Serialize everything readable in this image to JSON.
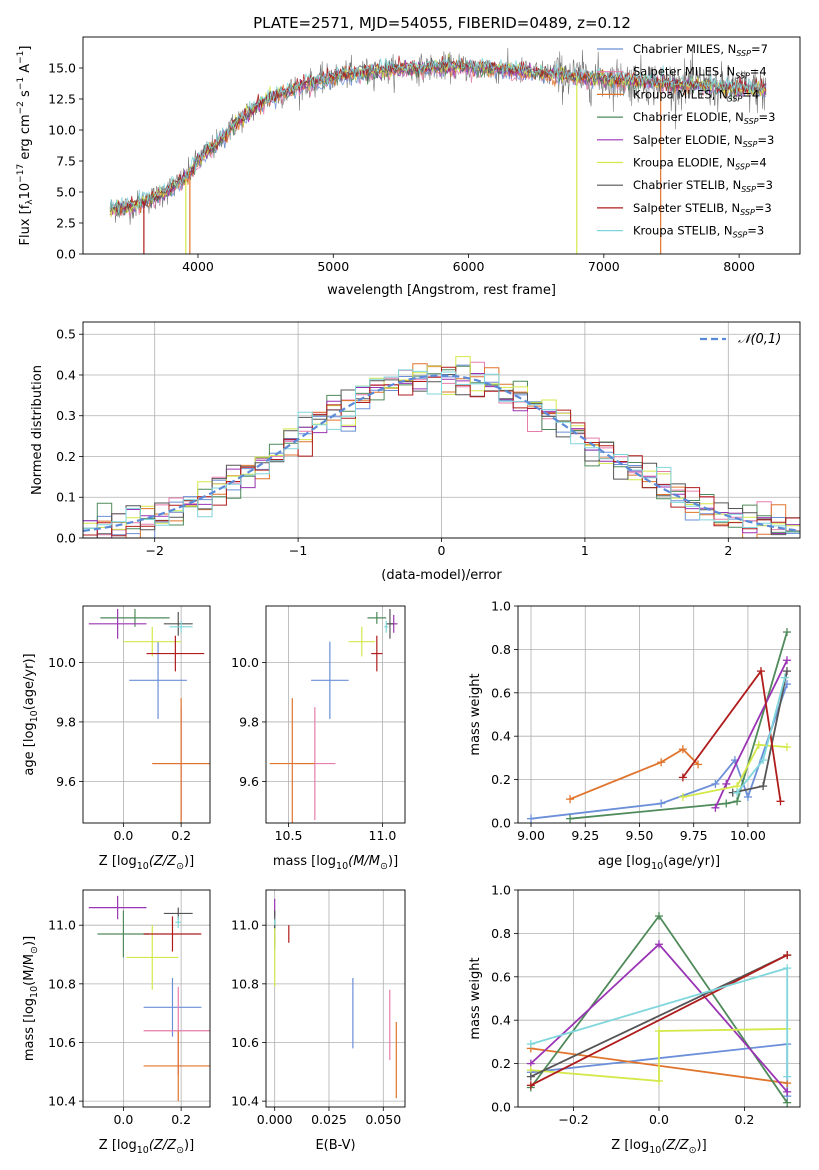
{
  "figure": {
    "title": "PLATE=2571, MJD=54055, FIBERID=0489, z=0.12"
  },
  "colors": {
    "chabrier_miles": "#6b8fd8",
    "salpeter_miles": "#e67dab",
    "kroupa_miles": "#e0742c",
    "chabrier_elodie": "#4f8a5a",
    "salpeter_elodie": "#9a34b4",
    "kroupa_elodie": "#d4e84a",
    "chabrier_stelib": "#555555",
    "salpeter_stelib": "#b01c1c",
    "kroupa_stelib": "#7fd6dc",
    "gaussian": "#5b8bd8",
    "spectrum": "#777777"
  },
  "chart_data": [
    {
      "id": "spectrum",
      "type": "line",
      "title": "PLATE=2571, MJD=54055, FIBERID=0489, z=0.12",
      "xlabel": "wavelength [Angstrom, rest frame]",
      "ylabel_main": "Flux [f",
      "ylabel_sub": "λ",
      "ylabel_mid": "10",
      "ylabel_sup": "−17",
      "ylabel_tail": " erg cm",
      "ylabel_sup2": "−2",
      "ylabel_tail2": " s",
      "ylabel_sup3": "−1",
      "ylabel_tail3": " A",
      "ylabel_sup4": "−1",
      "ylabel_end": "]",
      "xlim": [
        3150,
        8450
      ],
      "ylim": [
        0,
        17.5
      ],
      "xticks": [
        4000,
        5000,
        6000,
        7000,
        8000
      ],
      "yticks": [
        0.0,
        2.5,
        5.0,
        7.5,
        10.0,
        12.5,
        15.0
      ],
      "ytick_labels": [
        "0.0",
        "2.5",
        "5.0",
        "7.5",
        "10.0",
        "12.5",
        "15.0"
      ],
      "grid": false,
      "legend_position": "top-right",
      "continuum": {
        "x": [
          3350,
          3500,
          3700,
          3900,
          4000,
          4150,
          4300,
          4500,
          4700,
          4900,
          5100,
          5300,
          5500,
          5700,
          5900,
          6100,
          6300,
          6500,
          6700,
          6900,
          7100,
          7300,
          7500,
          7700,
          7900,
          8200
        ],
        "y": [
          3.6,
          3.8,
          4.6,
          6.0,
          7.5,
          9.0,
          10.8,
          12.4,
          13.3,
          14.0,
          14.5,
          14.7,
          14.9,
          15.0,
          15.1,
          15.0,
          14.8,
          14.6,
          14.4,
          14.2,
          14.0,
          13.9,
          13.7,
          13.6,
          13.4,
          13.2
        ]
      },
      "legend": [
        {
          "key": "chabrier_miles",
          "main": "Chabrier MILES, N",
          "sub": "SSP",
          "tail": "=7"
        },
        {
          "key": "salpeter_miles",
          "main": "Salpeter MILES, N",
          "sub": "SSP",
          "tail": "=4"
        },
        {
          "key": "kroupa_miles",
          "main": "Kroupa MILES, N",
          "sub": "SSP",
          "tail": "=4"
        },
        {
          "key": "chabrier_elodie",
          "main": "Chabrier ELODIE, N",
          "sub": "SSP",
          "tail": "=3"
        },
        {
          "key": "salpeter_elodie",
          "main": "Salpeter ELODIE, N",
          "sub": "SSP",
          "tail": "=3"
        },
        {
          "key": "kroupa_elodie",
          "main": "Kroupa ELODIE, N",
          "sub": "SSP",
          "tail": "=4"
        },
        {
          "key": "chabrier_stelib",
          "main": "Chabrier STELIB, N",
          "sub": "SSP",
          "tail": "=3"
        },
        {
          "key": "salpeter_stelib",
          "main": "Salpeter STELIB, N",
          "sub": "SSP",
          "tail": "=3"
        },
        {
          "key": "kroupa_stelib",
          "main": "Kroupa STELIB, N",
          "sub": "SSP",
          "tail": "=3"
        }
      ],
      "drops": [
        {
          "x": 3600,
          "key": "salpeter_stelib"
        },
        {
          "x": 3910,
          "key": "kroupa_elodie"
        },
        {
          "x": 3940,
          "key": "kroupa_miles"
        },
        {
          "x": 6800,
          "key": "kroupa_elodie"
        },
        {
          "x": 7420,
          "key": "kroupa_miles"
        }
      ]
    },
    {
      "id": "residuals",
      "type": "histogram",
      "xlabel": "(data-model)/error",
      "ylabel": "Normed distribution",
      "xlim": [
        -2.5,
        2.5
      ],
      "ylim": [
        0,
        0.53
      ],
      "xticks": [
        -2,
        -1,
        0,
        1,
        2
      ],
      "xtick_labels": [
        "−2",
        "−1",
        "0",
        "1",
        "2"
      ],
      "yticks": [
        0.0,
        0.1,
        0.2,
        0.3,
        0.4,
        0.5
      ],
      "ytick_labels": [
        "0.0",
        "0.1",
        "0.2",
        "0.3",
        "0.4",
        "0.5"
      ],
      "grid": true,
      "bin_width": 0.1,
      "legend": [
        {
          "label": "𝒩(0,1)",
          "style": "dashed"
        }
      ],
      "legend_position": "top-right"
    },
    {
      "id": "age_vs_Z",
      "type": "errorbar",
      "xlabel_main": "Z [log",
      "xlabel_sub": "10",
      "xlabel_tail": "(Z/Z",
      "xlabel_sub2": "⊙",
      "xlabel_end": ")]",
      "ylabel_main": "age  [log",
      "ylabel_sub": "10",
      "ylabel_end": "(age/yr)]",
      "xlim": [
        -0.14,
        0.3
      ],
      "ylim": [
        9.46,
        10.19
      ],
      "xticks": [
        0.0,
        0.2
      ],
      "xtick_labels": [
        "0.0",
        "0.2"
      ],
      "yticks": [
        9.6,
        9.8,
        10.0
      ],
      "ytick_labels": [
        "9.6",
        "9.8",
        "10.0"
      ],
      "grid": true,
      "points": [
        {
          "key": "chabrier_miles",
          "x": 0.12,
          "y": 9.94,
          "xerr": 0.1,
          "yerr": 0.13
        },
        {
          "key": "salpeter_miles",
          "x": 0.2,
          "y": 9.66,
          "xerr": 0.1,
          "yerr": 0.19
        },
        {
          "key": "kroupa_miles",
          "x": 0.2,
          "y": 9.66,
          "xerr": 0.1,
          "yerr": 0.22
        },
        {
          "key": "chabrier_elodie",
          "x": 0.04,
          "y": 10.15,
          "xerr": 0.12,
          "yerr": 0.03
        },
        {
          "key": "salpeter_elodie",
          "x": -0.02,
          "y": 10.13,
          "xerr": 0.1,
          "yerr": 0.05
        },
        {
          "key": "kroupa_elodie",
          "x": 0.1,
          "y": 10.07,
          "xerr": 0.1,
          "yerr": 0.05
        },
        {
          "key": "chabrier_stelib",
          "x": 0.19,
          "y": 10.13,
          "xerr": 0.05,
          "yerr": 0.04
        },
        {
          "key": "salpeter_stelib",
          "x": 0.18,
          "y": 10.03,
          "xerr": 0.1,
          "yerr": 0.06
        },
        {
          "key": "kroupa_stelib",
          "x": 0.2,
          "y": 10.12,
          "xerr": 0.04,
          "yerr": 0.02
        }
      ]
    },
    {
      "id": "age_vs_mass",
      "type": "errorbar",
      "xlabel_main": "mass [log",
      "xlabel_sub": "10",
      "xlabel_tail": "(M/M",
      "xlabel_sub2": "⊙",
      "xlabel_end": ")]",
      "xlim": [
        10.38,
        11.12
      ],
      "ylim": [
        9.46,
        10.19
      ],
      "xticks": [
        10.5,
        11.0
      ],
      "xtick_labels": [
        "10.5",
        "11.0"
      ],
      "yticks": [
        9.6,
        9.8,
        10.0
      ],
      "ytick_labels": [
        "9.6",
        "9.8",
        "10.0"
      ],
      "grid": true,
      "points": [
        {
          "key": "chabrier_miles",
          "x": 10.72,
          "y": 9.94,
          "xerr": 0.1,
          "yerr": 0.13
        },
        {
          "key": "salpeter_miles",
          "x": 10.64,
          "y": 9.66,
          "xerr": 0.11,
          "yerr": 0.19
        },
        {
          "key": "kroupa_miles",
          "x": 10.52,
          "y": 9.66,
          "xerr": 0.12,
          "yerr": 0.22
        },
        {
          "key": "chabrier_elodie",
          "x": 10.97,
          "y": 10.15,
          "xerr": 0.05,
          "yerr": 0.02
        },
        {
          "key": "salpeter_elodie",
          "x": 11.06,
          "y": 10.13,
          "xerr": 0.02,
          "yerr": 0.03
        },
        {
          "key": "kroupa_elodie",
          "x": 10.89,
          "y": 10.07,
          "xerr": 0.07,
          "yerr": 0.05
        },
        {
          "key": "chabrier_stelib",
          "x": 11.04,
          "y": 10.13,
          "xerr": 0.02,
          "yerr": 0.05
        },
        {
          "key": "salpeter_stelib",
          "x": 10.97,
          "y": 10.03,
          "xerr": 0.03,
          "yerr": 0.06
        },
        {
          "key": "kroupa_stelib",
          "x": 11.02,
          "y": 10.12,
          "xerr": 0.01,
          "yerr": 0.02
        }
      ]
    },
    {
      "id": "weight_vs_age",
      "type": "line",
      "xlabel_main": "age  [log",
      "xlabel_sub": "10",
      "xlabel_end": "(age/yr)]",
      "ylabel": "mass weight",
      "xlim": [
        8.94,
        10.24
      ],
      "ylim": [
        0,
        1.0
      ],
      "xticks": [
        9.0,
        9.25,
        9.5,
        9.75,
        10.0
      ],
      "xtick_labels": [
        "9.00",
        "9.25",
        "9.50",
        "9.75",
        "10.00"
      ],
      "yticks": [
        0.0,
        0.2,
        0.4,
        0.6,
        0.8,
        1.0
      ],
      "ytick_labels": [
        "0.0",
        "0.2",
        "0.4",
        "0.6",
        "0.8",
        "1.0"
      ],
      "grid": true,
      "series": [
        {
          "key": "chabrier_miles",
          "x": [
            9.0,
            9.6,
            9.85,
            9.94,
            10.0,
            10.18
          ],
          "y": [
            0.02,
            0.09,
            0.18,
            0.29,
            0.12,
            0.64
          ]
        },
        {
          "key": "kroupa_miles",
          "x": [
            9.18,
            9.6,
            9.7,
            9.77
          ],
          "y": [
            0.11,
            0.28,
            0.34,
            0.27
          ]
        },
        {
          "key": "chabrier_elodie",
          "x": [
            9.18,
            9.9,
            9.95,
            10.18
          ],
          "y": [
            0.02,
            0.09,
            0.1,
            0.88
          ]
        },
        {
          "key": "salpeter_elodie",
          "x": [
            9.85,
            9.9,
            10.18
          ],
          "y": [
            0.07,
            0.18,
            0.75
          ]
        },
        {
          "key": "kroupa_elodie",
          "x": [
            9.7,
            9.95,
            10.05,
            10.18
          ],
          "y": [
            0.12,
            0.17,
            0.36,
            0.35
          ]
        },
        {
          "key": "chabrier_stelib",
          "x": [
            9.93,
            10.07,
            10.18
          ],
          "y": [
            0.14,
            0.17,
            0.7
          ]
        },
        {
          "key": "salpeter_stelib",
          "x": [
            9.7,
            10.06,
            10.15
          ],
          "y": [
            0.21,
            0.7,
            0.1
          ]
        },
        {
          "key": "kroupa_stelib",
          "x": [
            9.95,
            10.07,
            10.17
          ],
          "y": [
            0.14,
            0.29,
            0.67
          ]
        }
      ]
    },
    {
      "id": "mass_vs_Z",
      "type": "errorbar",
      "xlabel_main": "Z [log",
      "xlabel_sub": "10",
      "xlabel_tail": "(Z/Z",
      "xlabel_sub2": "⊙",
      "xlabel_end": ")]",
      "ylabel_main": "mass [log",
      "ylabel_sub": "10",
      "ylabel_tail": "(M/M",
      "ylabel_sub2": "⊙",
      "ylabel_end": ")]",
      "xlim": [
        -0.14,
        0.3
      ],
      "ylim": [
        10.38,
        11.12
      ],
      "xticks": [
        0.0,
        0.2
      ],
      "xtick_labels": [
        "0.0",
        "0.2"
      ],
      "yticks": [
        10.4,
        10.6,
        10.8,
        11.0
      ],
      "ytick_labels": [
        "10.4",
        "10.6",
        "10.8",
        "11.0"
      ],
      "grid": true,
      "points": [
        {
          "key": "chabrier_miles",
          "x": 0.17,
          "y": 10.72,
          "xerr": 0.1,
          "yerr": 0.1
        },
        {
          "key": "salpeter_miles",
          "x": 0.19,
          "y": 10.64,
          "xerr": 0.12,
          "yerr": 0.15
        },
        {
          "key": "kroupa_miles",
          "x": 0.19,
          "y": 10.52,
          "xerr": 0.12,
          "yerr": 0.12
        },
        {
          "key": "chabrier_elodie",
          "x": 0.0,
          "y": 10.97,
          "xerr": 0.09,
          "yerr": 0.08
        },
        {
          "key": "salpeter_elodie",
          "x": -0.02,
          "y": 11.06,
          "xerr": 0.1,
          "yerr": 0.04
        },
        {
          "key": "kroupa_elodie",
          "x": 0.1,
          "y": 10.89,
          "xerr": 0.09,
          "yerr": 0.11
        },
        {
          "key": "chabrier_stelib",
          "x": 0.19,
          "y": 11.04,
          "xerr": 0.05,
          "yerr": 0.02
        },
        {
          "key": "salpeter_stelib",
          "x": 0.17,
          "y": 10.97,
          "xerr": 0.1,
          "yerr": 0.06
        },
        {
          "key": "kroupa_stelib",
          "x": 0.19,
          "y": 11.01,
          "xerr": 0.01,
          "yerr": 0.02
        }
      ]
    },
    {
      "id": "mass_vs_ebv",
      "type": "errorbar",
      "xlabel": "E(B-V)",
      "xlim": [
        -0.004,
        0.06
      ],
      "ylim": [
        10.38,
        11.12
      ],
      "xticks": [
        0.0,
        0.025,
        0.05
      ],
      "xtick_labels": [
        "0.000",
        "0.025",
        "0.050"
      ],
      "yticks": [
        10.4,
        10.6,
        10.8,
        11.0
      ],
      "ytick_labels": [
        "10.4",
        "10.6",
        "10.8",
        "11.0"
      ],
      "grid": true,
      "points": [
        {
          "key": "chabrier_miles",
          "x": 0.036,
          "y": 10.7,
          "xerr": 0,
          "yerr": 0.12
        },
        {
          "key": "salpeter_miles",
          "x": 0.053,
          "y": 10.66,
          "xerr": 0,
          "yerr": 0.12
        },
        {
          "key": "kroupa_miles",
          "x": 0.056,
          "y": 10.54,
          "xerr": 0,
          "yerr": 0.13
        },
        {
          "key": "chabrier_elodie",
          "x": 0.0,
          "y": 10.97,
          "xerr": 0,
          "yerr": 0.05
        },
        {
          "key": "salpeter_elodie",
          "x": 0.0,
          "y": 11.06,
          "xerr": 0,
          "yerr": 0.03
        },
        {
          "key": "kroupa_elodie",
          "x": 0.0,
          "y": 10.89,
          "xerr": 0,
          "yerr": 0.1
        },
        {
          "key": "chabrier_stelib",
          "x": 0.0,
          "y": 11.02,
          "xerr": 0,
          "yerr": 0.03
        },
        {
          "key": "salpeter_stelib",
          "x": 0.0065,
          "y": 10.97,
          "xerr": 0,
          "yerr": 0.03
        },
        {
          "key": "kroupa_stelib",
          "x": 0.0,
          "y": 11.01,
          "xerr": 0,
          "yerr": 0.01
        }
      ]
    },
    {
      "id": "weight_vs_Z",
      "type": "line",
      "xlabel_main": "Z [log",
      "xlabel_sub": "10",
      "xlabel_tail": "(Z/Z",
      "xlabel_sub2": "⊙",
      "xlabel_end": ")]",
      "ylabel": "mass weight",
      "xlim": [
        -0.33,
        0.33
      ],
      "ylim": [
        0,
        1.0
      ],
      "xticks": [
        -0.2,
        0.0,
        0.2
      ],
      "xtick_labels": [
        "−0.2",
        "0.0",
        "0.2"
      ],
      "yticks": [
        0.0,
        0.2,
        0.4,
        0.6,
        0.8,
        1.0
      ],
      "ytick_labels": [
        "0.0",
        "0.2",
        "0.4",
        "0.6",
        "0.8",
        "1.0"
      ],
      "grid": true,
      "series": [
        {
          "key": "chabrier_miles",
          "x": [
            -0.3,
            0.3,
            0.3
          ],
          "y": [
            0.16,
            0.29,
            0.05
          ]
        },
        {
          "key": "kroupa_miles",
          "x": [
            -0.3,
            0.3
          ],
          "y": [
            0.27,
            0.11
          ]
        },
        {
          "key": "chabrier_elodie",
          "x": [
            -0.3,
            0.0,
            0.3
          ],
          "y": [
            0.09,
            0.88,
            0.02
          ]
        },
        {
          "key": "salpeter_elodie",
          "x": [
            -0.3,
            0.0,
            0.3
          ],
          "y": [
            0.2,
            0.75,
            0.07
          ]
        },
        {
          "key": "kroupa_elodie",
          "x": [
            -0.3,
            0.0,
            0.0,
            0.3
          ],
          "y": [
            0.17,
            0.12,
            0.35,
            0.36
          ]
        },
        {
          "key": "chabrier_stelib",
          "x": [
            -0.3,
            0.3
          ],
          "y": [
            0.14,
            0.7
          ]
        },
        {
          "key": "salpeter_stelib",
          "x": [
            -0.3,
            0.3
          ],
          "y": [
            0.1,
            0.7
          ]
        },
        {
          "key": "kroupa_stelib",
          "x": [
            -0.3,
            0.3,
            0.3
          ],
          "y": [
            0.29,
            0.64,
            0.14
          ]
        }
      ]
    }
  ]
}
